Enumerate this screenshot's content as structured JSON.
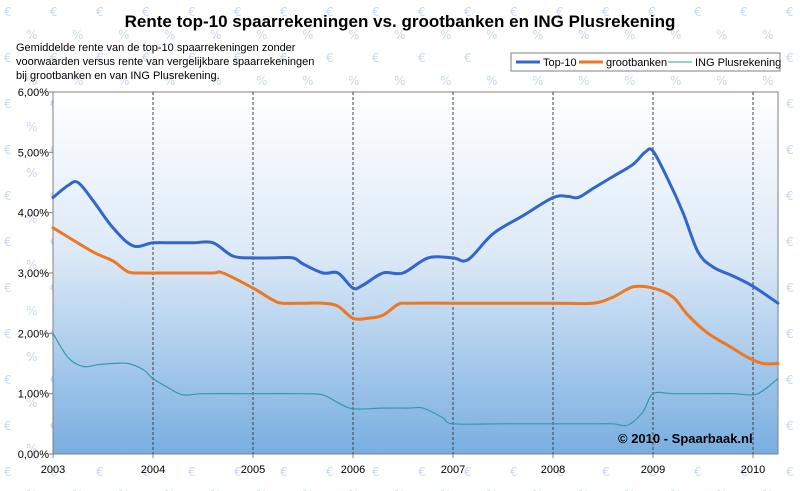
{
  "chart_data": {
    "type": "line",
    "title": "Rente top-10 spaarrekeningen vs. grootbanken en ING Plusrekening",
    "subtitle": [
      "Gemiddelde rente van de top-10 spaarrekeningen zonder",
      "voorwaarden versus rente van vergelijkbare spaarrekeningen",
      "bij grootbanken en van ING Plusrekening."
    ],
    "credit": "© 2010 - Spaarbaak.nl",
    "xlim": [
      2003,
      2010.25
    ],
    "ylim": [
      0,
      6
    ],
    "x_ticks": [
      "2003",
      "2004",
      "2005",
      "2006",
      "2007",
      "2008",
      "2009",
      "2010"
    ],
    "y_ticks": [
      "0,00%",
      "1,00%",
      "2,00%",
      "3,00%",
      "4,00%",
      "5,00%",
      "6,00%"
    ],
    "grid": "vertical dashed lines at each year",
    "legend_position": "top-right",
    "series": [
      {
        "name": "Top-10",
        "color": "#3366cc",
        "x": [
          2003.0,
          2003.15,
          2003.25,
          2003.4,
          2003.6,
          2003.8,
          2004.0,
          2004.2,
          2004.4,
          2004.6,
          2004.8,
          2005.0,
          2005.2,
          2005.4,
          2005.5,
          2005.7,
          2005.85,
          2006.0,
          2006.1,
          2006.3,
          2006.5,
          2006.75,
          2007.0,
          2007.15,
          2007.4,
          2007.7,
          2008.0,
          2008.15,
          2008.25,
          2008.4,
          2008.6,
          2008.8,
          2008.92,
          2009.0,
          2009.15,
          2009.3,
          2009.45,
          2009.6,
          2009.8,
          2010.0,
          2010.25
        ],
        "y": [
          4.25,
          4.45,
          4.5,
          4.2,
          3.75,
          3.45,
          3.5,
          3.5,
          3.5,
          3.5,
          3.28,
          3.25,
          3.25,
          3.25,
          3.15,
          3.0,
          3.0,
          2.75,
          2.8,
          3.0,
          3.0,
          3.25,
          3.25,
          3.22,
          3.65,
          3.95,
          4.25,
          4.27,
          4.25,
          4.4,
          4.6,
          4.8,
          5.0,
          5.02,
          4.55,
          4.0,
          3.35,
          3.1,
          2.95,
          2.78,
          2.5
        ]
      },
      {
        "name": "grootbanken",
        "color": "#ee7722",
        "x": [
          2003.0,
          2003.4,
          2003.6,
          2003.75,
          2003.9,
          2004.0,
          2004.3,
          2004.6,
          2004.7,
          2005.0,
          2005.2,
          2005.3,
          2005.5,
          2005.7,
          2005.85,
          2006.0,
          2006.15,
          2006.3,
          2006.45,
          2006.55,
          2007.0,
          2007.5,
          2008.0,
          2008.4,
          2008.6,
          2008.8,
          2009.0,
          2009.2,
          2009.35,
          2009.55,
          2009.75,
          2009.95,
          2010.1,
          2010.25
        ],
        "y": [
          3.75,
          3.35,
          3.2,
          3.02,
          3.0,
          3.0,
          3.0,
          3.0,
          3.0,
          2.75,
          2.55,
          2.5,
          2.5,
          2.5,
          2.45,
          2.25,
          2.25,
          2.3,
          2.48,
          2.5,
          2.5,
          2.5,
          2.5,
          2.5,
          2.6,
          2.77,
          2.75,
          2.6,
          2.3,
          2.0,
          1.8,
          1.6,
          1.5,
          1.5
        ]
      },
      {
        "name": "ING Plusrekening",
        "color": "#3399aa",
        "x": [
          2003.0,
          2003.15,
          2003.3,
          2003.45,
          2003.6,
          2003.75,
          2003.9,
          2004.0,
          2004.15,
          2004.3,
          2004.5,
          2005.0,
          2005.5,
          2005.7,
          2005.85,
          2006.0,
          2006.3,
          2006.55,
          2006.7,
          2006.9,
          2007.0,
          2007.5,
          2008.0,
          2008.4,
          2008.6,
          2008.75,
          2008.9,
          2009.0,
          2009.2,
          2009.5,
          2009.8,
          2010.0,
          2010.1,
          2010.25
        ],
        "y": [
          2.0,
          1.6,
          1.45,
          1.48,
          1.5,
          1.5,
          1.4,
          1.25,
          1.1,
          0.98,
          1.0,
          1.0,
          1.0,
          0.98,
          0.85,
          0.75,
          0.76,
          0.76,
          0.76,
          0.6,
          0.5,
          0.5,
          0.5,
          0.5,
          0.5,
          0.48,
          0.7,
          1.0,
          1.0,
          1.0,
          1.0,
          0.98,
          1.05,
          1.25
        ]
      }
    ]
  }
}
